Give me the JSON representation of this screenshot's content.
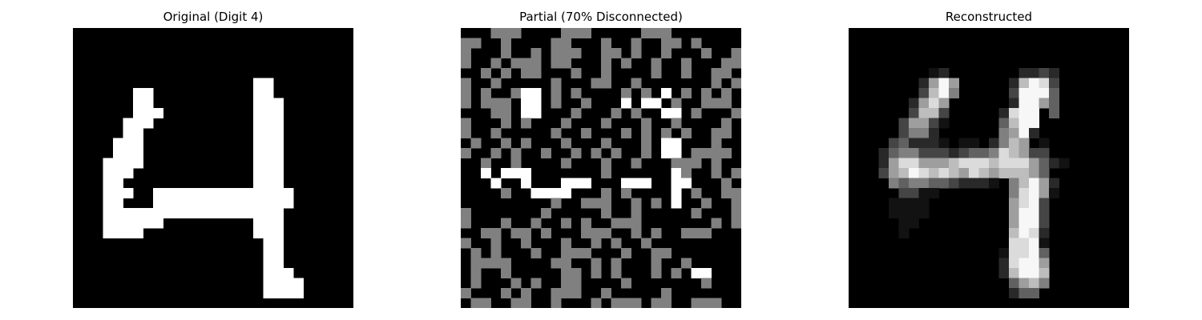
{
  "chart_data": [
    {
      "type": "heatmap",
      "title": "Original (Digit 4)",
      "colormap": "gray",
      "grid": false,
      "rows": 28,
      "cols": 28,
      "values": [
        "............................",
        "............................",
        "............................",
        "............................",
        "............................",
        "..................##........",
        "......##..........##........",
        "......##..........###.......",
        "......###.........###.......",
        ".....###..........###.......",
        ".....##...........###.......",
        "....###...........###.......",
        "....###...........###.......",
        "...####...........###.......",
        "...###............###.......",
        "...##.............###.......",
        "...###..##############......",
        "...##...##############......",
        "...##################.......",
        "...######.........###.......",
        "...####...........###.......",
        "...................##.......",
        "...................##.......",
        "...................##.......",
        "...................###......",
        "...................####.....",
        "...................####.....",
        "............................"
      ]
    },
    {
      "type": "heatmap",
      "title": "Partial (70% Disconnected)",
      "colormap": "gray",
      "grid": false,
      "rows": 28,
      "cols": 28,
      "values": [
        "...+++....+++.....+++.......",
        "++..+....++...+..+..++.+....",
        "+...+..+.+++..++.+..+...+..+",
        "+..+.+++.++...+.+..+..+...++",
        "..+.+.++...+..+....+..+..++.",
        "+..+.....+...++..+.......+.+",
        "+.+..+##.+.+....+.+.#.+.+.+.",
        "+.+++.##.+..+...#.##.+..+++.",
        "...++.##...+...+.+..##.+...+",
        "+...+.+...+...+...+..+....+.",
        "+..+.....+..+...+.+.+.+..++.",
        ".+..+.+...+...+...+.##...+..",
        "+..+.+..+..+.+.+..+.##.++++.",
        "..+..+....+...+..+...+++.+..",
        "..#.###.......+......#+..+.+",
        "...#..#...###...###..##...+.",
        "....+..####...+.+....#.+..++",
        ".........+..+++..+.+.#..+..+",
        "+.......+.....+..+.....+...+",
        "+...+..+..+.+..+++.......+.+",
        "..++.++.+...+++..+.+..+++...",
        "+..+..+...+..+.+..+.........",
        ".+.+...+..+++...+..++.......",
        ".++++....++..+.+...+..+.....",
        ".+..+.....++.+.+...+.+.##...",
        ".+...+.+..++....+.......+...",
        "+...+.+..+++..+.....+.......",
        ".++..++..+...+.+++.++..+++.."
      ]
    },
    {
      "type": "heatmap",
      "title": "Reconstructed",
      "colormap": "gray",
      "grid": false,
      "rows": 28,
      "cols": 28,
      "values": [
        "............................",
        "............................",
        "............................",
        "............................",
        "........12.......2232.......",
        ".......2696.....27983.......",
        ".......3795.....39994.......",
        "......2686......29964.......",
        "......3773.....2899.4.......",
        ".....36631.....4799.........",
        ".....3552......5692.........",
        "....342221.11.2576.1........",
        "...24553332344587633........",
        "...2688666788878886421......",
        "...36798787687677764........",
        "....54554432221.57962.......",
        ".....3311.......58961.......",
        "....1111........6893........",
        "....1111........6993........",
        ".....11.........6993........",
        ".....1..........7982........",
        "................8891........",
        "...............18894........",
        "...............28996........",
        "...............27997........",
        "................4675........",
        "................244.........",
        "............................"
      ],
      "value_scale": {
        ".": 0.0,
        "1": 0.07,
        "2": 0.16,
        "3": 0.27,
        "4": 0.38,
        "5": 0.5,
        "6": 0.62,
        "7": 0.74,
        "8": 0.86,
        "9": 0.97,
        "+": 0.5,
        "#": 1.0
      }
    }
  ]
}
